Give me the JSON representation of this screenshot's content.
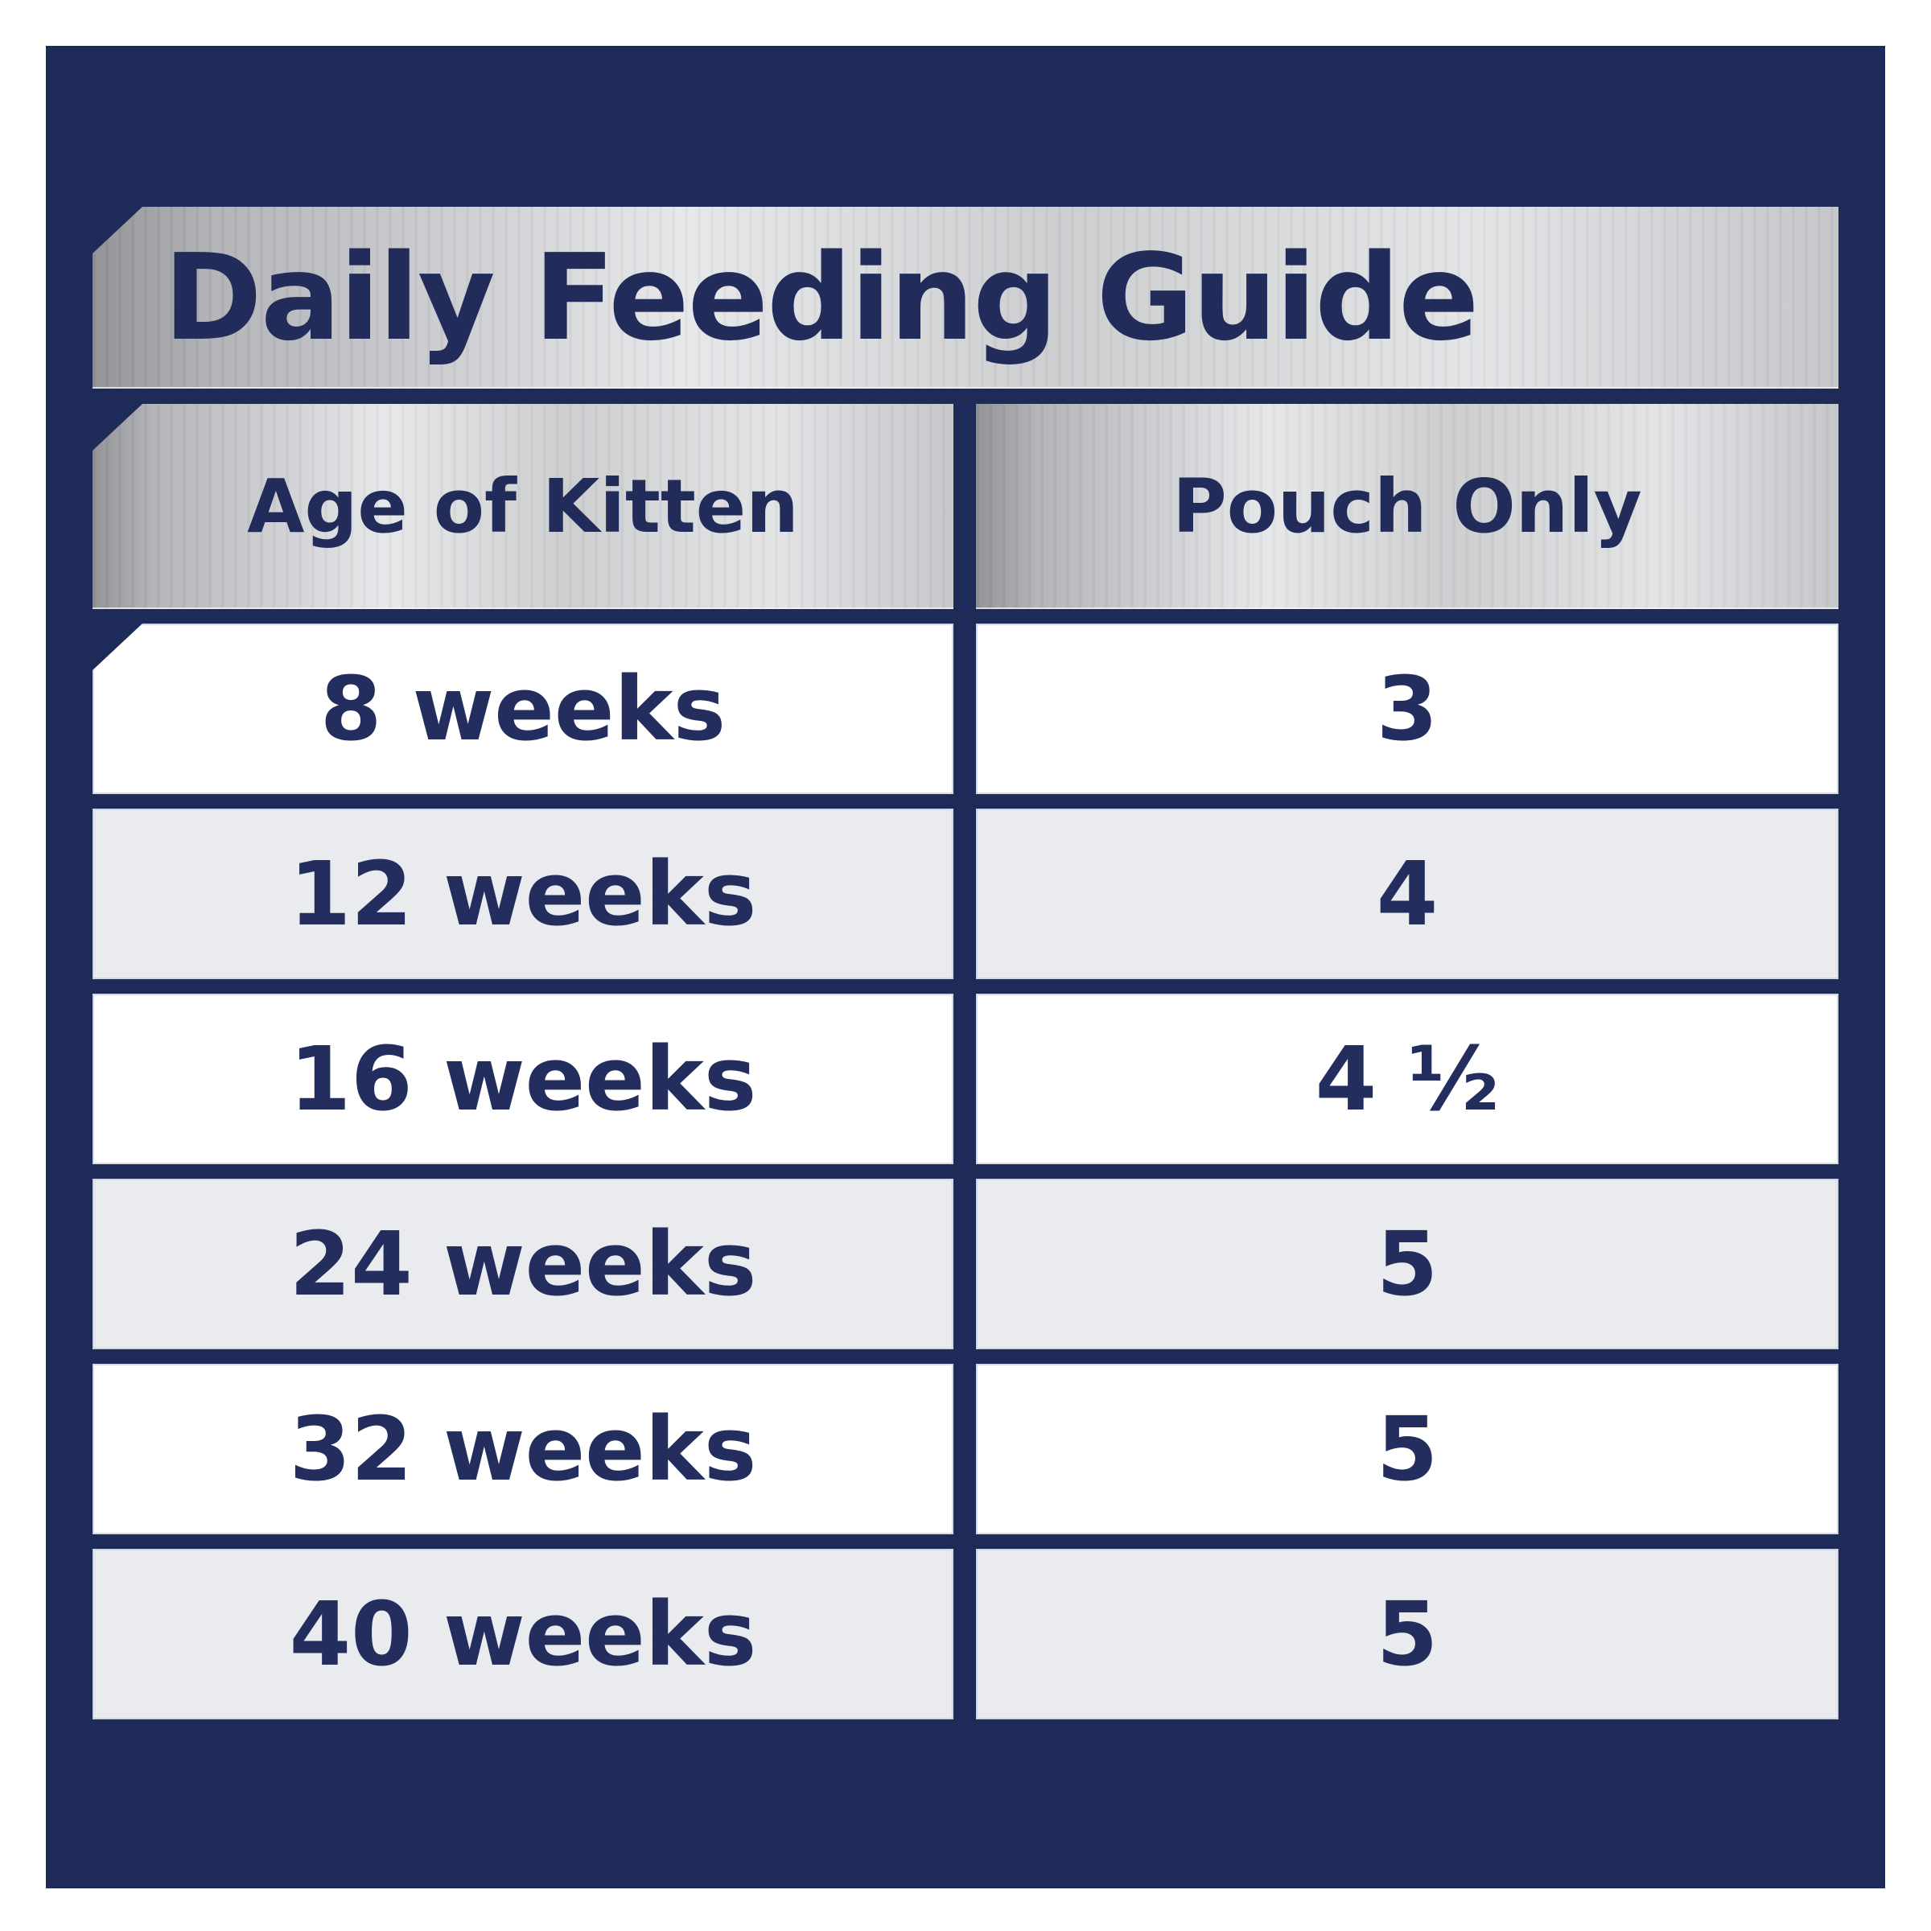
{
  "title": "Daily Feeding Guide",
  "table": {
    "columns": [
      "Age of Kitten",
      "Pouch Only"
    ],
    "rows": [
      {
        "age": "8 weeks",
        "pouches": "3"
      },
      {
        "age": "12 weeks",
        "pouches": "4"
      },
      {
        "age": "16 weeks",
        "pouches": "4 ½"
      },
      {
        "age": "24 weeks",
        "pouches": "5"
      },
      {
        "age": "32 weeks",
        "pouches": "5"
      },
      {
        "age": "40 weeks",
        "pouches": "5"
      }
    ]
  },
  "colors": {
    "page_border": "#ffffff",
    "panel_navy": "#1e2a58",
    "text_navy": "#212c5a",
    "row_white": "#ffffff",
    "row_gray": "#e9ebee",
    "silver_dark": "#8e8f93",
    "silver_light": "#e6e7e9"
  },
  "chart_data": {
    "type": "table",
    "title": "Daily Feeding Guide",
    "columns": [
      "Age of Kitten",
      "Pouch Only"
    ],
    "rows": [
      [
        "8 weeks",
        "3"
      ],
      [
        "12 weeks",
        "4"
      ],
      [
        "16 weeks",
        "4 ½"
      ],
      [
        "24 weeks",
        "5"
      ],
      [
        "32 weeks",
        "5"
      ],
      [
        "40 weeks",
        "5"
      ]
    ],
    "layout_hints": {
      "row_striping": [
        "white",
        "gray",
        "white",
        "gray",
        "white",
        "gray"
      ],
      "header_style": "silver-metallic-gradient",
      "background": "navy",
      "notched_corners": [
        "title-banner",
        "age-header-cell",
        "first-data-row-left-cell"
      ]
    }
  }
}
